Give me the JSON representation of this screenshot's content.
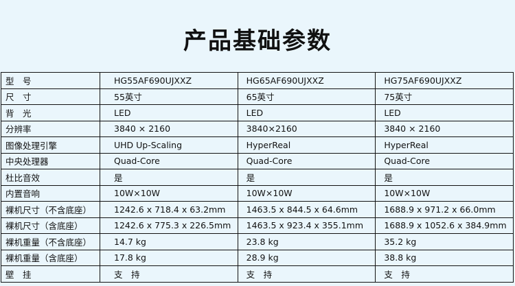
{
  "title": "产品基础参数",
  "rows": [
    {
      "label": "型　号",
      "values": [
        "HG55AF690UJXXZ",
        "HG65AF690UJXXZ",
        "HG75AF690UJXXZ"
      ]
    },
    {
      "label": "尺　寸",
      "values": [
        "55英寸",
        "65英寸",
        "75英寸"
      ]
    },
    {
      "label": "背　光",
      "values": [
        "LED",
        "LED",
        "LED"
      ]
    },
    {
      "label": "分辨率",
      "values": [
        "3840 × 2160",
        "3840×2160",
        "3840 × 2160"
      ]
    },
    {
      "label": "图像处理引擎",
      "values": [
        "UHD Up-Scaling",
        "HyperReal",
        "HyperReal"
      ]
    },
    {
      "label": "中央处理器",
      "values": [
        "Quad-Core",
        "Quad-Core",
        "Quad-Core"
      ]
    },
    {
      "label": "杜比音效",
      "values": [
        "是",
        "是",
        "是"
      ]
    },
    {
      "label": "内置音响",
      "values": [
        "10W×10W",
        "10W×10W",
        "10W×10W"
      ]
    },
    {
      "label": "裸机尺寸（不含底座）",
      "values": [
        "1242.6 x 718.4 x 63.2mm",
        "1463.5 x 844.5 x 64.6mm",
        "1688.9 x 971.2 x 66.0mm"
      ]
    },
    {
      "label": "裸机尺寸（含底座）",
      "values": [
        "1242.6 x 775.3 x 226.5mm",
        "1463.5 x 923.4 x 355.1mm",
        "1688.9 x 1052.6 x 384.9mm"
      ]
    },
    {
      "label": "裸机重量（不含底座）",
      "values": [
        "14.7 kg",
        "23.8 kg",
        "35.2 kg"
      ]
    },
    {
      "label": "裸机重量（含底座）",
      "values": [
        "17.8 kg",
        "28.9 kg",
        "38.8 kg"
      ]
    },
    {
      "label": "壁　挂",
      "values": [
        "支　持",
        "支　持",
        "支　持"
      ]
    }
  ]
}
